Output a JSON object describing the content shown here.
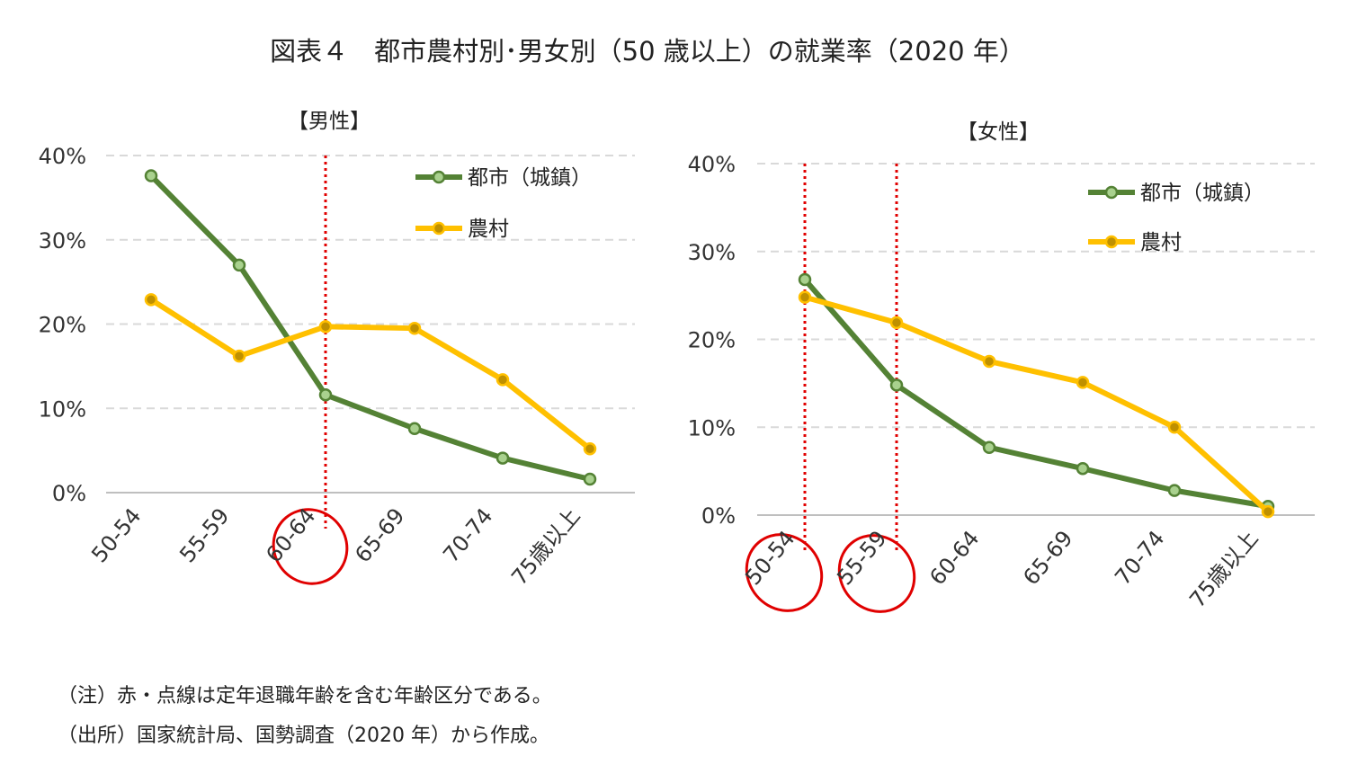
{
  "title": "図表４　都市農村別･男女別（50 歳以上）の就業率（2020 年）",
  "notes": [
    "（注）赤・点線は定年退職年齢を含む年齢区分である。",
    "（出所）国家統計局、国勢調査（2020 年）から作成。"
  ],
  "colors": {
    "urban": "#548235",
    "urban_marker": "#a9d18e",
    "rural": "#ffc000",
    "rural_marker": "#bf9000",
    "retirement_highlight": "#e00000",
    "grid": "#d9d9d9"
  },
  "chart_data": [
    {
      "type": "line",
      "title": "【男性】",
      "categories": [
        "50-54",
        "55-59",
        "60-64",
        "65-69",
        "70-74",
        "75歳以上"
      ],
      "y_ticks": [
        "0%",
        "10%",
        "20%",
        "30%",
        "40%"
      ],
      "ylim": [
        0,
        40
      ],
      "grid": true,
      "legend_position": "top-right",
      "series": [
        {
          "name": "都市（城鎮）",
          "color_key": "urban",
          "values": [
            37.6,
            27.0,
            11.6,
            7.6,
            4.1,
            1.6
          ]
        },
        {
          "name": "農村",
          "color_key": "rural",
          "values": [
            22.9,
            16.2,
            19.7,
            19.5,
            13.4,
            5.2
          ]
        }
      ],
      "highlighted_categories": [
        "60-64"
      ]
    },
    {
      "type": "line",
      "title": "【女性】",
      "categories": [
        "50-54",
        "55-59",
        "60-64",
        "65-69",
        "70-74",
        "75歳以上"
      ],
      "y_ticks": [
        "0%",
        "10%",
        "20%",
        "30%",
        "40%"
      ],
      "ylim": [
        0,
        40
      ],
      "grid": true,
      "legend_position": "top-right",
      "series": [
        {
          "name": "都市（城鎮）",
          "color_key": "urban",
          "values": [
            26.8,
            14.8,
            7.7,
            5.3,
            2.8,
            1.0
          ]
        },
        {
          "name": "農村",
          "color_key": "rural",
          "values": [
            24.8,
            21.9,
            17.5,
            15.1,
            10.0,
            0.4
          ]
        }
      ],
      "highlighted_categories": [
        "50-54",
        "55-59"
      ]
    }
  ]
}
